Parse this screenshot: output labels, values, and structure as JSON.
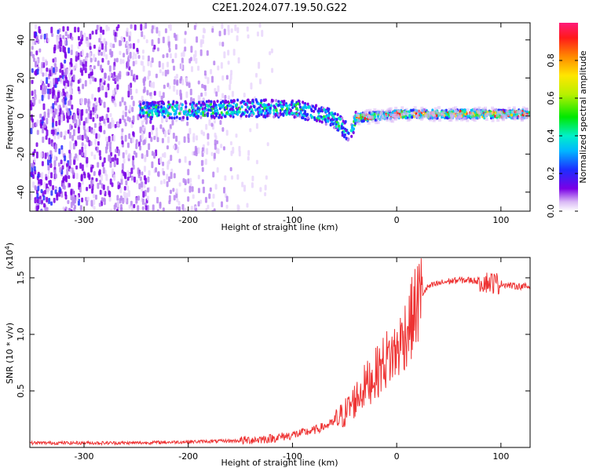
{
  "chart_data": [
    {
      "type": "heatmap",
      "title": "C2E1.2024.077.19.50.G22",
      "xlabel": "Height of straight line (km)",
      "ylabel": "Frequency (Hz)",
      "xlim": [
        -352,
        128
      ],
      "ylim": [
        -50,
        49
      ],
      "xticks": [
        -300,
        -200,
        -100,
        0,
        100
      ],
      "xtick_labels": [
        "-300",
        "-200",
        "-100",
        "0",
        "100"
      ],
      "yticks": [
        -40,
        -20,
        0,
        20,
        40
      ],
      "ytick_labels": [
        "-40",
        "-20",
        "0",
        "20",
        "40"
      ],
      "colorbar": {
        "label": "Normalized spectral amplitude",
        "range": [
          0,
          1
        ],
        "ticks": [
          0.0,
          0.2,
          0.4,
          0.6,
          0.8
        ],
        "tick_labels": [
          "0.0",
          "0.2",
          "0.4",
          "0.6",
          "0.8"
        ]
      },
      "ridge": [
        {
          "x": -245,
          "y": 3
        },
        {
          "x": -200,
          "y": 3
        },
        {
          "x": -150,
          "y": 4
        },
        {
          "x": -100,
          "y": 4
        },
        {
          "x": -75,
          "y": 1
        },
        {
          "x": -60,
          "y": -2
        },
        {
          "x": -45,
          "y": -10
        },
        {
          "x": -40,
          "y": -1
        },
        {
          "x": 0,
          "y": 1
        },
        {
          "x": 50,
          "y": 1
        },
        {
          "x": 128,
          "y": 1
        }
      ]
    },
    {
      "type": "line",
      "xlabel": "Height of straight line (km)",
      "ylabel": "SNR (10 * v/v)",
      "y_multiplier": "(x10",
      "y_multiplier_exp": "4",
      "y_multiplier_close": ")",
      "xlim": [
        -352,
        128
      ],
      "ylim": [
        0,
        1.68
      ],
      "xticks": [
        -300,
        -200,
        -100,
        0,
        100
      ],
      "xtick_labels": [
        "-300",
        "-200",
        "-100",
        "0",
        "100"
      ],
      "yticks": [
        0.5,
        1.0,
        1.5
      ],
      "ytick_labels": [
        "0.5",
        "1.0",
        "1.5"
      ],
      "series": [
        {
          "color": "#ee3333",
          "x": [
            -352,
            -300,
            -250,
            -200,
            -150,
            -120,
            -100,
            -80,
            -60,
            -50,
            -40,
            -30,
            -20,
            -10,
            0,
            5,
            10,
            15,
            20,
            25,
            30,
            40,
            50,
            60,
            70,
            80,
            90,
            100,
            110,
            128
          ],
          "y": [
            0.04,
            0.04,
            0.04,
            0.05,
            0.06,
            0.08,
            0.11,
            0.15,
            0.22,
            0.3,
            0.42,
            0.55,
            0.65,
            0.78,
            0.85,
            0.95,
            1.05,
            1.15,
            1.28,
            1.36,
            1.42,
            1.45,
            1.47,
            1.48,
            1.48,
            1.47,
            1.46,
            1.45,
            1.43,
            1.42
          ]
        }
      ]
    }
  ]
}
